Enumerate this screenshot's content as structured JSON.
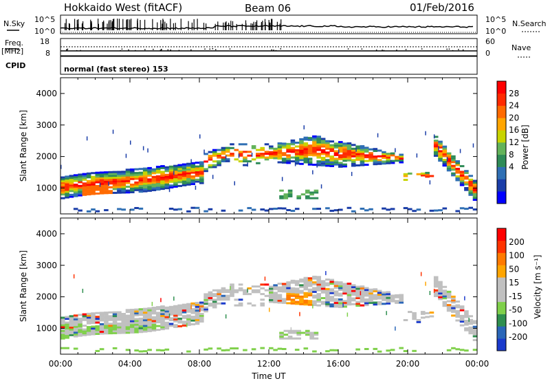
{
  "header": {
    "station": "Hokkaido West (fitACF)",
    "beam": "Beam 06",
    "date": "01/Feb/2016"
  },
  "strip": {
    "nsky_label": "N.Sky",
    "nsky_ticks": [
      "10^5",
      "10^0"
    ],
    "nsearch_label": "N.Search",
    "nsearch_ticks": [
      "10^5",
      "10^0"
    ],
    "freq_label": "Freq.",
    "freq_unit": "[MHz]",
    "freq_ticks": [
      "18",
      "8"
    ],
    "nave_label": "Nave",
    "nave_ticks": [
      "60",
      "0"
    ],
    "cpid_label": "CPID",
    "cpid_text": "normal (fast stereo) 153"
  },
  "colors": {
    "power_scale": [
      "#0000ff",
      "#1a3da8",
      "#2f6fb4",
      "#2e8b57",
      "#63b35a",
      "#c8d400",
      "#ffa500",
      "#ff6a00",
      "#ff2a00",
      "#ff0000"
    ],
    "velocity_scale": [
      "#1a3acc",
      "#2a66b8",
      "#2f8f4f",
      "#7fd04a",
      "#c0c0c0",
      "#c0c0c0",
      "#ffa500",
      "#ff7a00",
      "#ff3300",
      "#ff0000"
    ]
  },
  "chart_data": [
    {
      "type": "heatmap",
      "parameter": "power",
      "ylabel": "Slant Range [km]",
      "ylim": [
        180,
        4500
      ],
      "yticks": [
        "1000",
        "2000",
        "3000",
        "4000"
      ],
      "xlim": [
        "00:00",
        "24:00"
      ],
      "colorbar": {
        "label": "Power [dB]",
        "ticks": [
          "28",
          "24",
          "20",
          "16",
          "12",
          "8",
          "4"
        ]
      }
    },
    {
      "type": "heatmap",
      "parameter": "velocity",
      "ylabel": "Slant Range [km]",
      "ylim": [
        180,
        4500
      ],
      "yticks": [
        "1000",
        "2000",
        "3000",
        "4000"
      ],
      "xlim": [
        "00:00",
        "24:00"
      ],
      "xticks": [
        "00:00",
        "04:00",
        "08:00",
        "12:00",
        "16:00",
        "20:00",
        "00:00"
      ],
      "xlabel": "Time UT",
      "colorbar": {
        "label": "Velocity [m s⁻¹]",
        "ticks": [
          "200",
          "100",
          "50",
          "15",
          "-15",
          "-50",
          "-100",
          "-200"
        ]
      }
    }
  ]
}
